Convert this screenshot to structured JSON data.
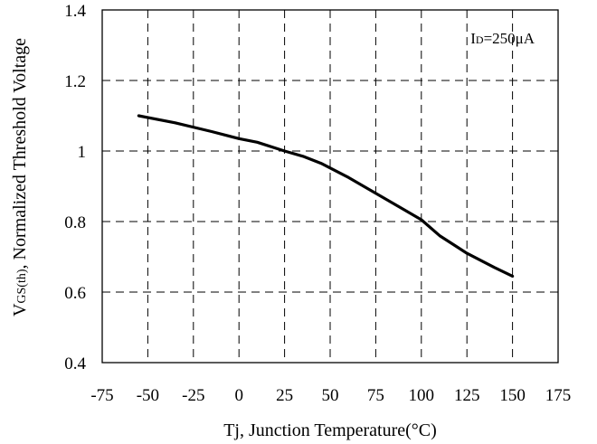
{
  "chart_data": {
    "type": "line",
    "title": "",
    "xlabel": "Tj, Junction Temperature(°C)",
    "ylabel": {
      "main": "V",
      "sub": "GS(th)",
      "rest": ", Normalized Threshold Voltage"
    },
    "xlim": [
      -75,
      175
    ],
    "ylim": [
      0.4,
      1.4
    ],
    "x_ticks": [
      -75,
      -50,
      -25,
      0,
      25,
      50,
      75,
      100,
      125,
      150,
      175
    ],
    "x_tick_labels": [
      "-75",
      "-50",
      "-25",
      "0",
      "25",
      "50",
      "75",
      "100",
      "125",
      "150",
      "175"
    ],
    "y_ticks": [
      0.4,
      0.6,
      0.8,
      1.0,
      1.2,
      1.4
    ],
    "y_tick_labels": [
      "0.4",
      "0.6",
      "0.8",
      "1",
      "1.2",
      "1.4"
    ],
    "grid": true,
    "annotation": {
      "main": "I",
      "sub": "D",
      "rest": "=250μA"
    },
    "series": [
      {
        "x": [
          -55,
          -35,
          -15,
          0,
          10,
          25,
          35,
          45,
          60,
          75,
          90,
          100,
          110,
          125,
          140,
          150
        ],
        "y": [
          1.1,
          1.08,
          1.055,
          1.035,
          1.025,
          1.0,
          0.985,
          0.965,
          0.925,
          0.88,
          0.835,
          0.805,
          0.76,
          0.71,
          0.67,
          0.645
        ]
      }
    ]
  }
}
